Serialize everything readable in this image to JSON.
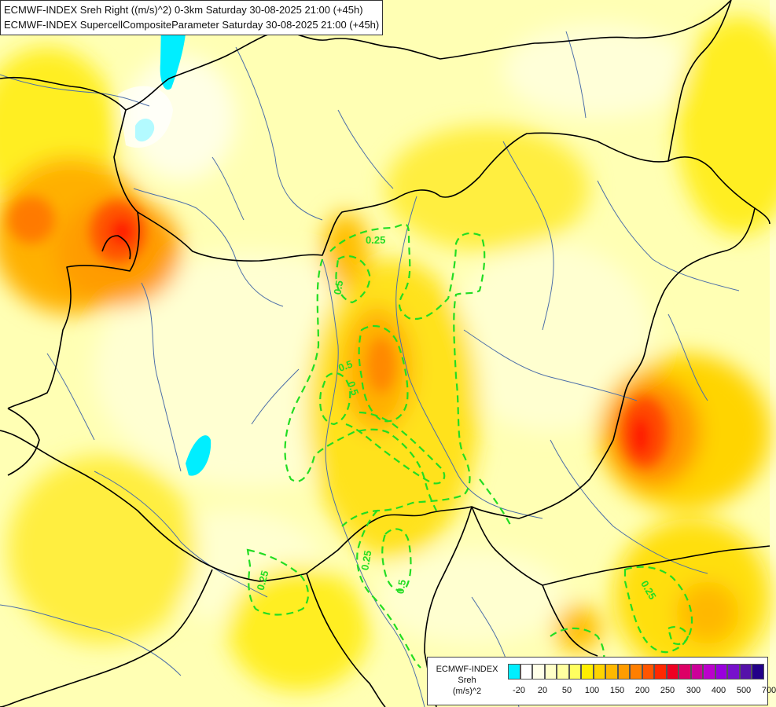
{
  "header": {
    "line1": "ECMWF-INDEX Sreh Right ((m/s)^2) 0-3km Saturday 30-08-2025 21:00 (+45h)",
    "line2": "ECMWF-INDEX SupercellCompositeParameter Saturday 30-08-2025 21:00 (+45h)"
  },
  "legend": {
    "title1": "ECMWF-INDEX",
    "title2": "Sreh",
    "units": "(m/s)^2",
    "colors": [
      "#00eeff",
      "#ffffff",
      "#ffffe8",
      "#ffffc8",
      "#ffffa0",
      "#ffff60",
      "#ffee00",
      "#ffd400",
      "#ffb800",
      "#ff9c00",
      "#ff7f00",
      "#ff5500",
      "#ff2800",
      "#ee0022",
      "#dd0066",
      "#cc0099",
      "#bb00cc",
      "#9900dd",
      "#7711cc",
      "#5511aa",
      "#220088"
    ],
    "ticks": [
      {
        "label": "-20",
        "value": -20
      },
      {
        "label": "20",
        "value": 20
      },
      {
        "label": "50",
        "value": 50
      },
      {
        "label": "100",
        "value": 100
      },
      {
        "label": "150",
        "value": 150
      },
      {
        "label": "200",
        "value": 200
      },
      {
        "label": "250",
        "value": 250
      },
      {
        "label": "300",
        "value": 300
      },
      {
        "label": "400",
        "value": 400
      },
      {
        "label": "500",
        "value": 500
      },
      {
        "label": "700",
        "value": 700
      }
    ]
  },
  "contour_labels": [
    "0.25",
    "0.5",
    "0.5",
    "0.5",
    "0.25",
    "0.5",
    "0.25",
    "0.25"
  ],
  "colors": {
    "contour": "#22dd22",
    "border": "#000000",
    "river": "#4d6fa8",
    "lake": "#00eeff"
  }
}
